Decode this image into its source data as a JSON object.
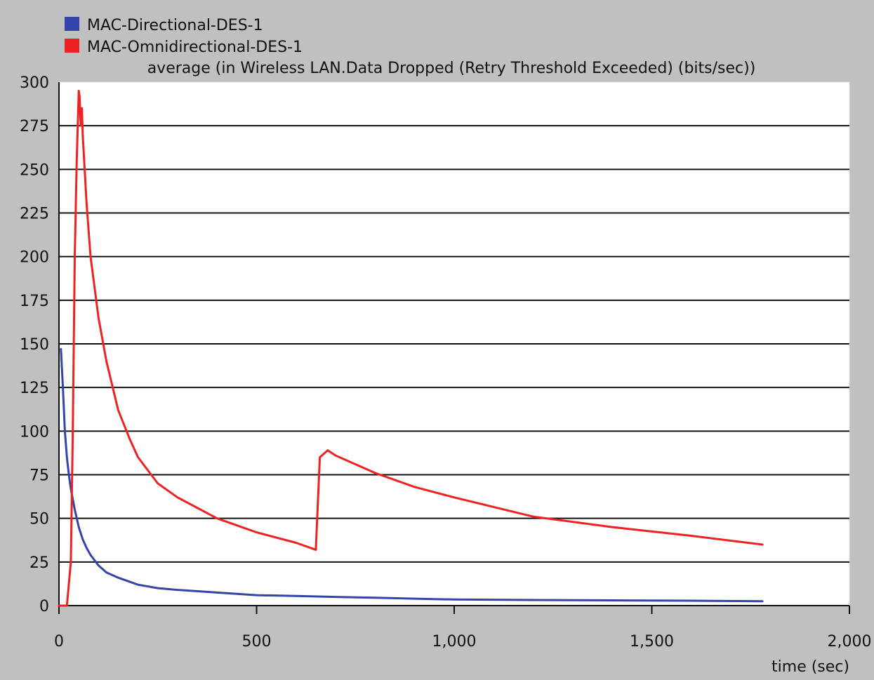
{
  "chart_data": {
    "type": "line",
    "title": "average (in Wireless LAN.Data Dropped (Retry Threshold Exceeded) (bits/sec))",
    "xlabel": "time (sec)",
    "ylabel": "",
    "xlim": [
      0,
      2000
    ],
    "ylim": [
      0,
      300
    ],
    "x_ticks": [
      0,
      500,
      1000,
      1500,
      2000
    ],
    "x_tick_labels": [
      "0",
      "500",
      "1,000",
      "1,500",
      "2,000"
    ],
    "y_ticks": [
      0,
      25,
      50,
      75,
      100,
      125,
      150,
      175,
      200,
      225,
      250,
      275,
      300
    ],
    "y_tick_labels": [
      "0",
      "25",
      "50",
      "75",
      "100",
      "125",
      "150",
      "175",
      "200",
      "225",
      "250",
      "275",
      "300"
    ],
    "grid": "horizontal",
    "legend": "top-left",
    "series": [
      {
        "name": "MAC-Directional-DES-1",
        "color": "#3344aa",
        "x": [
          5,
          10,
          15,
          20,
          25,
          30,
          40,
          50,
          60,
          70,
          80,
          100,
          120,
          150,
          200,
          250,
          300,
          400,
          500,
          600,
          700,
          800,
          900,
          1000,
          1200,
          1400,
          1600,
          1780
        ],
        "y": [
          147,
          125,
          100,
          85,
          75,
          67,
          55,
          45,
          38,
          33,
          29,
          23,
          19,
          16,
          12,
          10,
          9,
          7.5,
          6,
          5.5,
          5,
          4.5,
          4,
          3.5,
          3.2,
          3,
          2.8,
          2.5
        ]
      },
      {
        "name": "MAC-Omnidirectional-DES-1",
        "color": "#ee2222",
        "x": [
          0,
          15,
          20,
          30,
          35,
          40,
          45,
          50,
          52,
          55,
          58,
          60,
          70,
          80,
          100,
          120,
          150,
          180,
          200,
          250,
          300,
          400,
          500,
          600,
          650,
          660,
          680,
          700,
          800,
          900,
          1000,
          1200,
          1400,
          1600,
          1780
        ],
        "y": [
          0,
          0,
          0,
          25,
          100,
          200,
          255,
          295,
          292,
          275,
          285,
          270,
          230,
          200,
          165,
          140,
          112,
          95,
          85,
          70,
          62,
          50,
          42,
          36,
          32,
          85,
          89,
          86,
          76,
          68,
          62,
          51,
          45,
          40,
          35
        ]
      }
    ]
  }
}
